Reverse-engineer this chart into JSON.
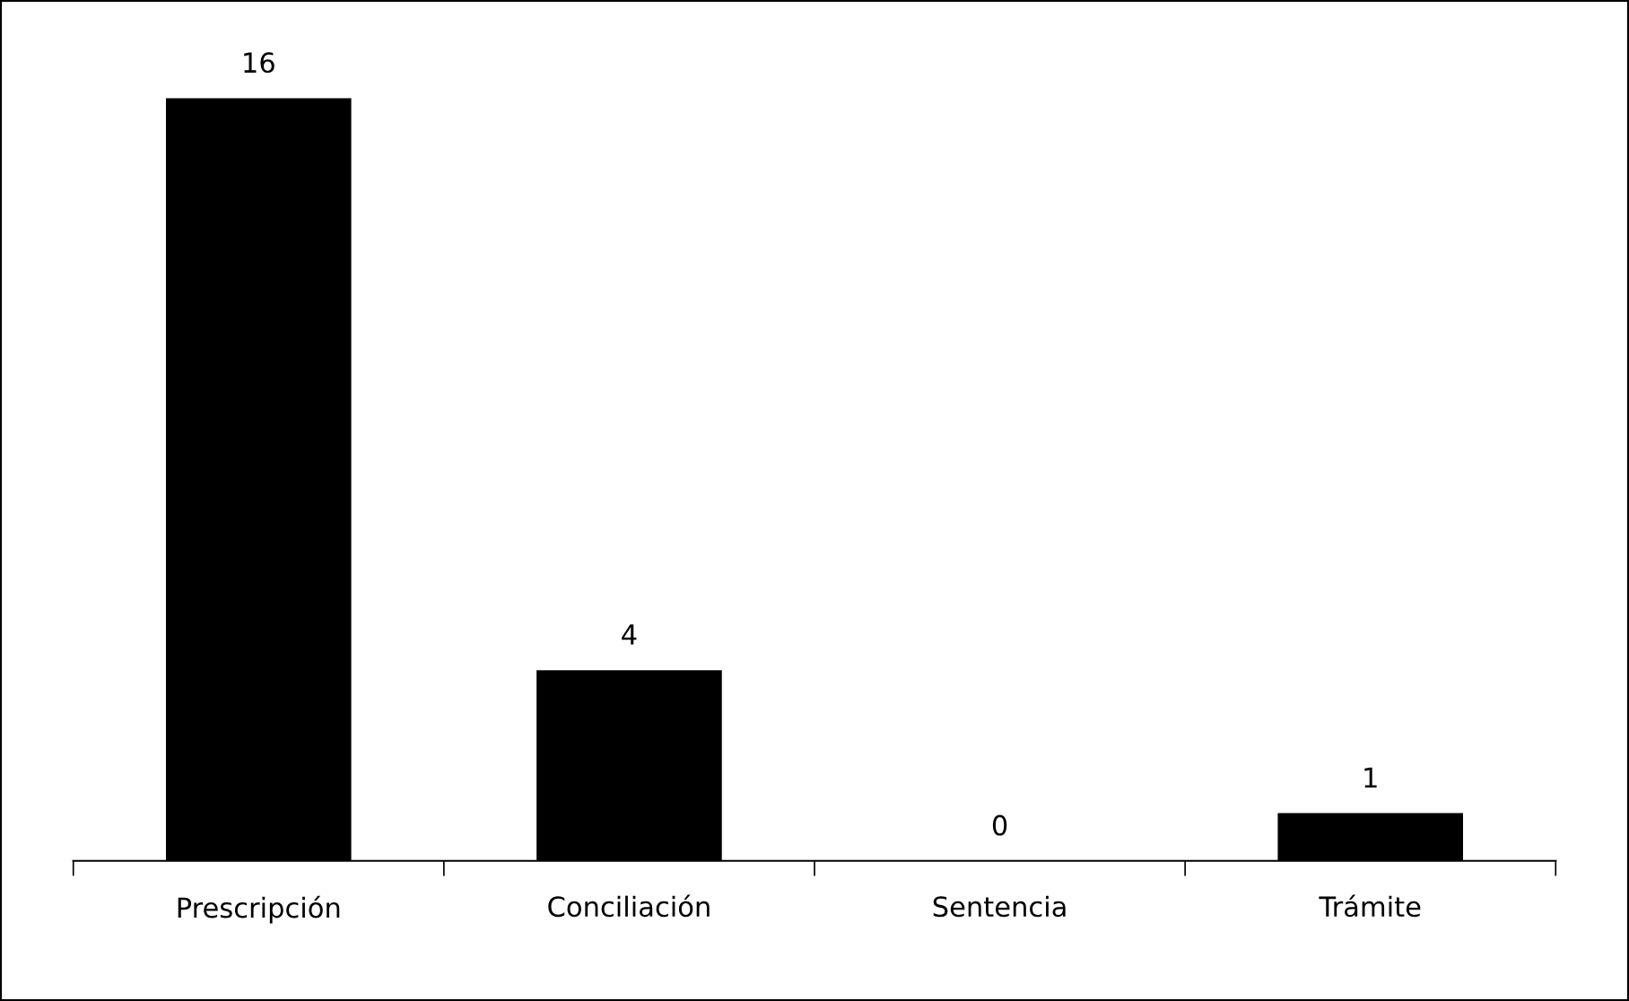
{
  "chart_data": {
    "type": "bar",
    "categories": [
      "Prescripción",
      "Conciliación",
      "Sentencia",
      "Trámite"
    ],
    "values": [
      16,
      4,
      0,
      1
    ],
    "color": "#000000",
    "data_labels": true,
    "grid": false,
    "legend": false
  }
}
